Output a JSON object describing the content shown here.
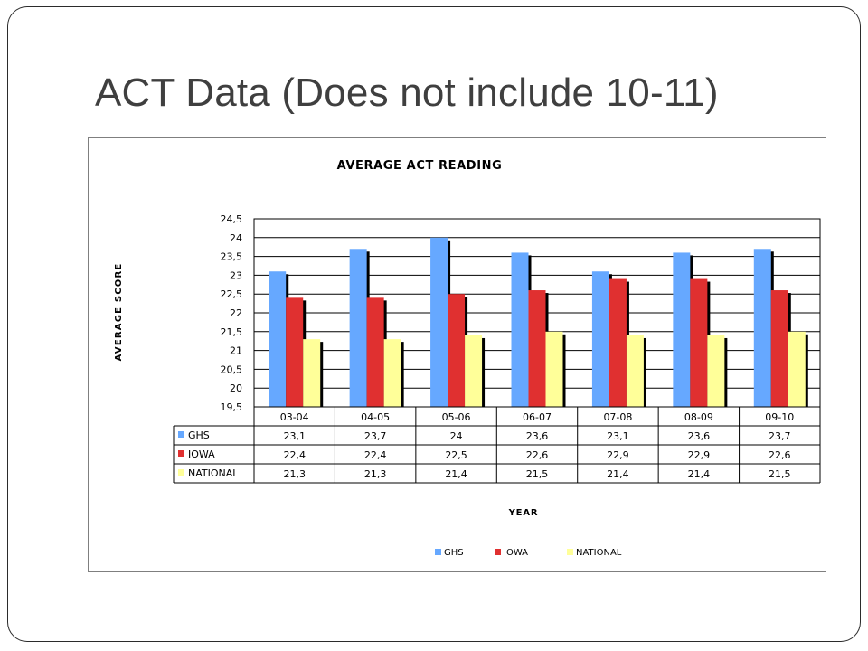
{
  "slide": {
    "title": "ACT Data (Does not include 10-11)"
  },
  "chart_data": {
    "type": "bar",
    "title": "AVERAGE ACT READING",
    "xlabel": "YEAR",
    "ylabel": "AVERAGE SCORE",
    "ylim": [
      19.5,
      24.5
    ],
    "ytick_step": 0.5,
    "ytick_labels": [
      "19,5",
      "20",
      "20,5",
      "21",
      "21,5",
      "22",
      "22,5",
      "23",
      "23,5",
      "24",
      "24,5"
    ],
    "grid": true,
    "legend_position": "bottom",
    "data_table": true,
    "categories": [
      "03-04",
      "04-05",
      "05-06",
      "06-07",
      "07-08",
      "08-09",
      "09-10"
    ],
    "series": [
      {
        "name": "GHS",
        "color": "#66a8ff",
        "values": [
          23.1,
          23.7,
          24,
          23.6,
          23.1,
          23.6,
          23.7
        ],
        "labels": [
          "23,1",
          "23,7",
          "24",
          "23,6",
          "23,1",
          "23,6",
          "23,7"
        ]
      },
      {
        "name": "IOWA",
        "color": "#e03030",
        "values": [
          22.4,
          22.4,
          22.5,
          22.6,
          22.9,
          22.9,
          22.6
        ],
        "labels": [
          "22,4",
          "22,4",
          "22,5",
          "22,6",
          "22,9",
          "22,9",
          "22,6"
        ]
      },
      {
        "name": "NATIONAL",
        "color": "#ffff99",
        "values": [
          21.3,
          21.3,
          21.4,
          21.5,
          21.4,
          21.4,
          21.5
        ],
        "labels": [
          "21,3",
          "21,3",
          "21,4",
          "21,5",
          "21,4",
          "21,4",
          "21,5"
        ]
      }
    ]
  }
}
